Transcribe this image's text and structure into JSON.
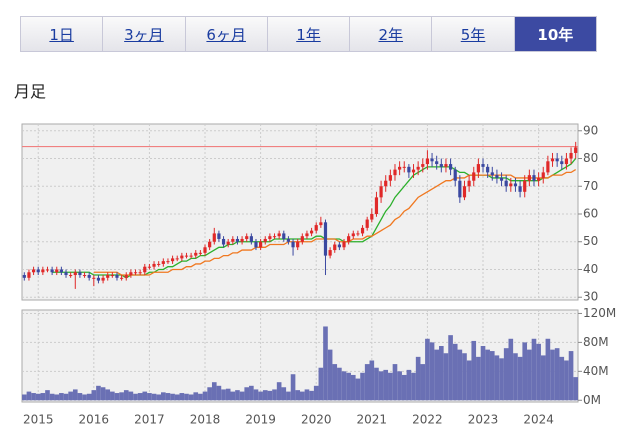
{
  "tabs": [
    "1日",
    "3ヶ月",
    "6ヶ月",
    "1年",
    "2年",
    "5年",
    "10年"
  ],
  "active_tab": 6,
  "period_label": "月足",
  "chart_data": {
    "type": "candlestick",
    "categories": [
      null,
      null,
      null,
      "2015",
      null,
      null,
      null,
      null,
      null,
      null,
      null,
      null,
      null,
      null,
      null,
      "2016",
      null,
      null,
      null,
      null,
      null,
      null,
      null,
      null,
      null,
      null,
      null,
      "2017",
      null,
      null,
      null,
      null,
      null,
      null,
      null,
      null,
      null,
      null,
      null,
      "2018",
      null,
      null,
      null,
      null,
      null,
      null,
      null,
      null,
      null,
      null,
      null,
      "2019",
      null,
      null,
      null,
      null,
      null,
      null,
      null,
      null,
      null,
      null,
      null,
      "2020",
      null,
      null,
      null,
      null,
      null,
      null,
      null,
      null,
      null,
      null,
      null,
      "2021",
      null,
      null,
      null,
      null,
      null,
      null,
      null,
      null,
      null,
      null,
      null,
      "2022",
      null,
      null,
      null,
      null,
      null,
      null,
      null,
      null,
      null,
      null,
      null,
      "2023",
      null,
      null,
      null,
      null,
      null,
      null,
      null,
      null,
      null,
      null,
      null,
      "2024",
      null,
      null,
      null,
      null,
      null,
      null,
      null,
      null
    ],
    "open": [
      38,
      37,
      39,
      40,
      39,
      40,
      40,
      39,
      40,
      39,
      38,
      38,
      39,
      38,
      38,
      37,
      37,
      36,
      37,
      38,
      38,
      37,
      37,
      38,
      39,
      39,
      39,
      41,
      41,
      42,
      42,
      43,
      43,
      44,
      44,
      45,
      45,
      45,
      46,
      46,
      48,
      50,
      53,
      51,
      49,
      50,
      51,
      50,
      51,
      52,
      50,
      48,
      50,
      51,
      52,
      52,
      53,
      51,
      50,
      48,
      50,
      52,
      53,
      54,
      56,
      57,
      45,
      47,
      49,
      48,
      50,
      52,
      53,
      53,
      55,
      58,
      60,
      66,
      70,
      72,
      74,
      76,
      77,
      77,
      75,
      76,
      77,
      78,
      80,
      79,
      78,
      77,
      78,
      76,
      72,
      66,
      70,
      72,
      75,
      78,
      77,
      75,
      74,
      73,
      72,
      70,
      71,
      70,
      68,
      72,
      74,
      72,
      73,
      75,
      79,
      80,
      79,
      78,
      80,
      82
    ],
    "high": [
      39,
      40,
      41,
      41,
      41,
      41,
      41,
      41,
      41,
      40,
      39,
      40,
      40,
      39,
      39,
      38,
      38,
      38,
      39,
      39,
      39,
      38,
      39,
      40,
      40,
      40,
      42,
      42,
      43,
      43,
      44,
      44,
      45,
      45,
      46,
      46,
      46,
      47,
      47,
      49,
      51,
      55,
      54,
      52,
      51,
      52,
      52,
      52,
      53,
      53,
      51,
      51,
      52,
      53,
      53,
      54,
      54,
      52,
      51,
      51,
      53,
      54,
      55,
      57,
      59,
      58,
      48,
      50,
      50,
      51,
      53,
      54,
      54,
      56,
      59,
      62,
      68,
      72,
      74,
      76,
      78,
      79,
      79,
      78,
      78,
      79,
      80,
      83,
      82,
      81,
      80,
      80,
      80,
      77,
      74,
      72,
      74,
      77,
      80,
      80,
      78,
      77,
      76,
      75,
      74,
      73,
      73,
      72,
      74,
      76,
      76,
      75,
      77,
      81,
      82,
      82,
      81,
      82,
      84,
      86
    ],
    "low": [
      36,
      36,
      38,
      38,
      38,
      39,
      38,
      38,
      38,
      37,
      37,
      33,
      37,
      37,
      36,
      34,
      35,
      35,
      36,
      37,
      36,
      36,
      36,
      37,
      38,
      38,
      38,
      40,
      40,
      41,
      41,
      42,
      42,
      43,
      43,
      44,
      44,
      44,
      45,
      45,
      47,
      49,
      50,
      48,
      48,
      49,
      49,
      49,
      50,
      49,
      47,
      47,
      49,
      50,
      51,
      51,
      50,
      49,
      45,
      47,
      49,
      51,
      52,
      53,
      55,
      38,
      44,
      46,
      47,
      47,
      49,
      51,
      52,
      52,
      54,
      57,
      59,
      64,
      68,
      70,
      72,
      74,
      75,
      73,
      73,
      74,
      75,
      76,
      77,
      76,
      75,
      75,
      74,
      70,
      64,
      65,
      68,
      70,
      73,
      75,
      73,
      72,
      71,
      70,
      68,
      68,
      68,
      66,
      66,
      70,
      70,
      70,
      71,
      74,
      77,
      77,
      76,
      76,
      78,
      80
    ],
    "close": [
      37,
      39,
      40,
      39,
      40,
      40,
      39,
      40,
      39,
      38,
      38,
      39,
      38,
      38,
      37,
      37,
      36,
      37,
      38,
      38,
      37,
      37,
      38,
      39,
      39,
      39,
      41,
      41,
      42,
      42,
      43,
      43,
      44,
      44,
      45,
      45,
      45,
      46,
      46,
      48,
      50,
      53,
      51,
      49,
      50,
      51,
      50,
      51,
      52,
      50,
      48,
      50,
      51,
      52,
      52,
      53,
      51,
      50,
      48,
      50,
      52,
      53,
      54,
      56,
      57,
      45,
      47,
      49,
      48,
      50,
      52,
      53,
      53,
      55,
      58,
      60,
      66,
      70,
      72,
      74,
      76,
      77,
      77,
      75,
      76,
      77,
      78,
      80,
      79,
      78,
      77,
      78,
      76,
      72,
      66,
      70,
      72,
      75,
      78,
      77,
      75,
      74,
      73,
      72,
      70,
      71,
      70,
      68,
      72,
      74,
      72,
      73,
      75,
      79,
      80,
      79,
      78,
      80,
      82,
      84
    ],
    "up_color": "#e02828",
    "down_color": "#3a48a0",
    "moving_averages": [
      {
        "color": "#2cb02c",
        "values": [
          null,
          null,
          null,
          null,
          null,
          null,
          39,
          39,
          39,
          39,
          39,
          39,
          39,
          39,
          39,
          38,
          38,
          38,
          38,
          38,
          38,
          38,
          37,
          38,
          38,
          38,
          38,
          39,
          39,
          40,
          40,
          41,
          41,
          42,
          43,
          43,
          44,
          44,
          45,
          45,
          46,
          47,
          48,
          48,
          49,
          49,
          50,
          50,
          50,
          50,
          50,
          50,
          50,
          50,
          51,
          51,
          51,
          51,
          51,
          51,
          51,
          51,
          51,
          52,
          52,
          51,
          51,
          51,
          51,
          50,
          50,
          50,
          50,
          50,
          51,
          52,
          55,
          58,
          61,
          63,
          66,
          68,
          70,
          72,
          74,
          75,
          76,
          77,
          77,
          77,
          77,
          77,
          77,
          76,
          75,
          75,
          74,
          74,
          74,
          74,
          74,
          73,
          73,
          73,
          73,
          72,
          72,
          72,
          72,
          72,
          72,
          72,
          73,
          73,
          74,
          75,
          76,
          77,
          78,
          80
        ]
      },
      {
        "color": "#f07820",
        "values": [
          null,
          null,
          null,
          null,
          null,
          null,
          null,
          null,
          null,
          null,
          null,
          null,
          null,
          null,
          null,
          39,
          39,
          39,
          39,
          39,
          39,
          38,
          38,
          38,
          38,
          38,
          38,
          38,
          39,
          39,
          39,
          39,
          40,
          40,
          40,
          41,
          41,
          42,
          42,
          43,
          43,
          44,
          44,
          45,
          45,
          46,
          46,
          47,
          47,
          47,
          48,
          48,
          48,
          49,
          49,
          49,
          49,
          50,
          50,
          50,
          50,
          50,
          50,
          51,
          51,
          51,
          51,
          51,
          50,
          50,
          50,
          51,
          51,
          51,
          52,
          52,
          53,
          54,
          55,
          56,
          58,
          59,
          61,
          62,
          64,
          66,
          67,
          68,
          69,
          70,
          71,
          72,
          72,
          73,
          73,
          73,
          74,
          74,
          74,
          74,
          74,
          74,
          74,
          74,
          74,
          74,
          73,
          73,
          73,
          73,
          73,
          73,
          73,
          73,
          74,
          74,
          74,
          75,
          75,
          76
        ]
      }
    ],
    "reference_line": {
      "value": 84.3,
      "color": "#f08080"
    },
    "ylim": [
      29,
      91
    ],
    "yticks": [
      30,
      40,
      50,
      60,
      70,
      80,
      90
    ],
    "grid": true,
    "volume": {
      "color": "#6a70b4",
      "values": [
        8,
        12,
        10,
        9,
        10,
        14,
        9,
        8,
        10,
        9,
        12,
        15,
        10,
        8,
        9,
        14,
        20,
        18,
        15,
        12,
        10,
        11,
        14,
        12,
        9,
        10,
        12,
        10,
        9,
        8,
        11,
        10,
        9,
        8,
        10,
        9,
        8,
        11,
        9,
        12,
        18,
        25,
        20,
        15,
        16,
        12,
        14,
        12,
        18,
        20,
        15,
        12,
        14,
        13,
        15,
        25,
        18,
        12,
        36,
        14,
        12,
        15,
        13,
        20,
        45,
        102,
        70,
        50,
        45,
        40,
        38,
        35,
        30,
        38,
        50,
        55,
        45,
        40,
        42,
        38,
        50,
        40,
        35,
        42,
        38,
        60,
        50,
        85,
        80,
        70,
        75,
        65,
        90,
        78,
        70,
        65,
        55,
        82,
        60,
        75,
        70,
        68,
        62,
        58,
        72,
        85,
        65,
        60,
        80,
        70,
        85,
        78,
        62,
        85,
        70,
        72,
        60,
        55,
        68,
        32
      ],
      "ylim": [
        -1,
        122
      ],
      "yticks": [
        {
          "value": 0,
          "label": "0M"
        },
        {
          "value": 40,
          "label": "40M"
        },
        {
          "value": 80,
          "label": "80M"
        },
        {
          "value": 120,
          "label": "120M"
        }
      ]
    }
  }
}
